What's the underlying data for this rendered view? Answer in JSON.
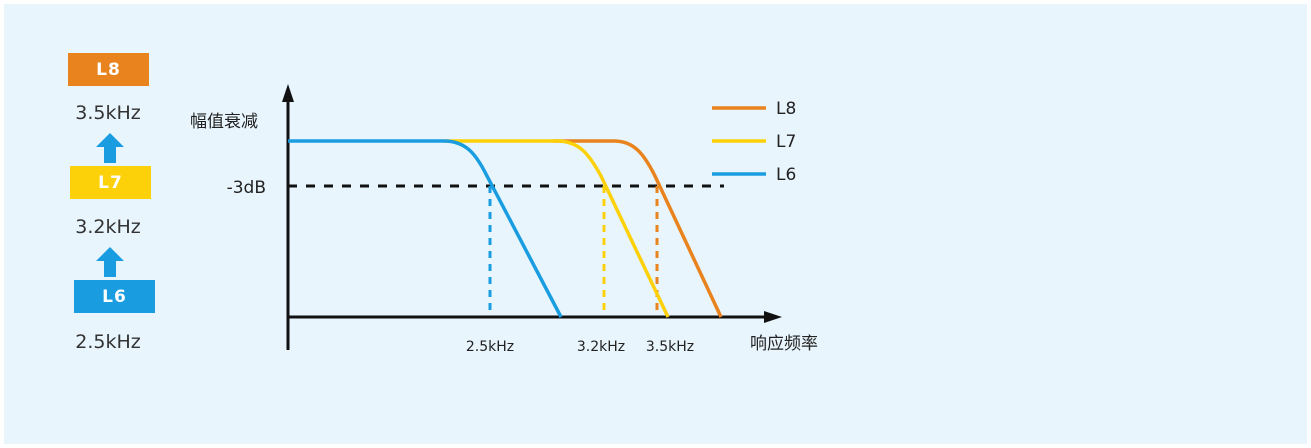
{
  "colors": {
    "background": "#e8f5fd",
    "L8": "#e9831d",
    "L7": "#fdd10a",
    "L6": "#1a9de0",
    "arrow": "#1a9de0",
    "axis": "#111111"
  },
  "levels": [
    {
      "label": "L8",
      "freq": "3.5kHz",
      "color": "#e9831d"
    },
    {
      "label": "L7",
      "freq": "3.2kHz",
      "color": "#fdd10a"
    },
    {
      "label": "L6",
      "freq": "2.5kHz",
      "color": "#1a9de0"
    }
  ],
  "level_arrow_icon": "up-arrow-icon",
  "chart_data": {
    "type": "line",
    "xlabel": "响应频率",
    "ylabel": "幅值衰减",
    "reference_line": {
      "label": "-3dB",
      "style": "dashed"
    },
    "tick_labels": [
      "2.5kHz",
      "3.2kHz",
      "3.5kHz"
    ],
    "legend_position": "top-right",
    "series": [
      {
        "name": "L8",
        "cutoff": "3.5kHz",
        "color": "#e9831d"
      },
      {
        "name": "L7",
        "cutoff": "3.2kHz",
        "color": "#fdd10a"
      },
      {
        "name": "L6",
        "cutoff": "2.5kHz",
        "color": "#1a9de0"
      }
    ]
  }
}
